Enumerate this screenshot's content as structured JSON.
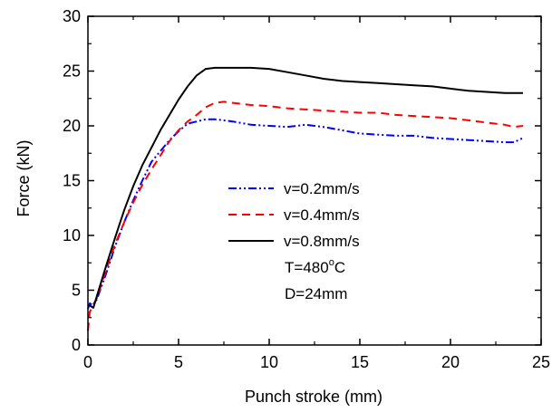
{
  "chart_data": {
    "type": "line",
    "title": "",
    "xlabel": "Punch stroke (mm)",
    "ylabel": "Force (kN)",
    "xlim": [
      0,
      25
    ],
    "ylim": [
      0,
      30
    ],
    "xticks": [
      0,
      5,
      10,
      15,
      20,
      25
    ],
    "yticks": [
      0,
      5,
      10,
      15,
      20,
      25,
      30
    ],
    "xtick_labels": [
      "0",
      "5",
      "10",
      "15",
      "20",
      "25"
    ],
    "ytick_labels": [
      "0",
      "5",
      "10",
      "15",
      "20",
      "25",
      "30"
    ],
    "grid": false,
    "legend_position": "center-right",
    "series": [
      {
        "name": "v=0.2mm/s",
        "color": "#0000ff",
        "dash": "dash-dot-dot",
        "x": [
          0,
          0.1,
          0.3,
          0.5,
          1,
          1.5,
          2,
          2.5,
          3,
          3.5,
          4,
          4.5,
          5,
          5.5,
          6,
          6.5,
          7,
          7.5,
          8,
          9,
          10,
          11,
          12,
          13,
          14,
          15,
          16,
          17,
          18,
          19,
          20,
          21,
          22,
          23,
          23.5,
          24
        ],
        "y": [
          3.3,
          3.8,
          3.6,
          4.2,
          6.5,
          9.0,
          11.2,
          13.2,
          15.0,
          16.7,
          17.7,
          18.7,
          19.5,
          20.2,
          20.4,
          20.6,
          20.6,
          20.5,
          20.4,
          20.1,
          20.0,
          19.9,
          20.1,
          19.9,
          19.6,
          19.3,
          19.2,
          19.1,
          19.1,
          18.9,
          18.8,
          18.7,
          18.6,
          18.5,
          18.5,
          18.9
        ]
      },
      {
        "name": "v=0.4mm/s",
        "color": "#ff0000",
        "dash": "dash",
        "x": [
          0,
          0.1,
          0.3,
          0.5,
          1,
          1.5,
          2,
          2.5,
          3,
          3.5,
          4,
          4.5,
          5,
          5.5,
          6,
          6.5,
          7,
          7.5,
          8,
          9,
          10,
          11,
          12,
          13,
          14,
          15,
          16,
          17,
          18,
          19,
          20,
          21,
          22,
          23,
          23.5,
          24
        ],
        "y": [
          1.3,
          3.0,
          3.7,
          4.3,
          6.8,
          9.2,
          11.2,
          13.0,
          14.6,
          16.0,
          17.3,
          18.6,
          19.6,
          20.4,
          21.0,
          21.7,
          22.1,
          22.2,
          22.1,
          21.9,
          21.8,
          21.6,
          21.5,
          21.4,
          21.3,
          21.2,
          21.2,
          21.0,
          20.9,
          20.8,
          20.7,
          20.5,
          20.3,
          20.1,
          19.9,
          20.0
        ]
      },
      {
        "name": "v=0.8mm/s",
        "color": "#000000",
        "dash": "solid",
        "x": [
          0,
          0.1,
          0.3,
          0.5,
          1,
          1.5,
          2,
          2.5,
          3,
          3.5,
          4,
          4.5,
          5,
          5.5,
          6,
          6.5,
          7,
          7.5,
          8,
          9,
          10,
          11,
          12,
          13,
          14,
          15,
          16,
          17,
          18,
          19,
          20,
          21,
          22,
          23,
          24
        ],
        "y": [
          3.5,
          3.6,
          3.4,
          4.5,
          7.2,
          9.8,
          12.3,
          14.5,
          16.4,
          18.0,
          19.6,
          21.0,
          22.4,
          23.6,
          24.6,
          25.2,
          25.3,
          25.3,
          25.3,
          25.3,
          25.2,
          24.9,
          24.6,
          24.3,
          24.1,
          24.0,
          23.9,
          23.8,
          23.7,
          23.6,
          23.4,
          23.2,
          23.1,
          23.0,
          23.0
        ]
      }
    ],
    "annotations": [
      "T=480",
      "o",
      "C",
      "D=24mm"
    ]
  }
}
